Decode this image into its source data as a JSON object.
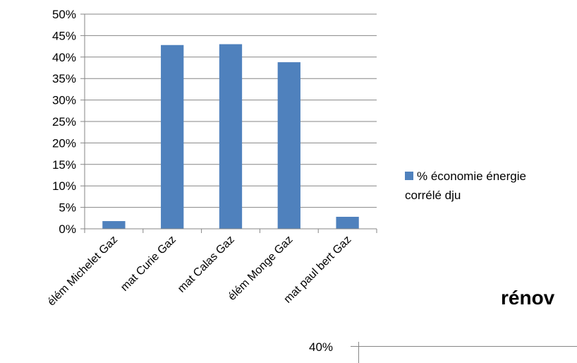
{
  "chart_data": [
    {
      "type": "bar",
      "categories": [
        "élém Michelet  Gaz",
        "mat Curie  Gaz",
        "mat Calas  Gaz",
        "élém Monge  Gaz",
        "mat paul bert  Gaz"
      ],
      "series": [
        {
          "name": "% économie énergie corrélé dju",
          "values": [
            0.018,
            0.428,
            0.43,
            0.388,
            0.028
          ]
        }
      ],
      "ylim": [
        0,
        0.5
      ],
      "yticks": [
        "0%",
        "5%",
        "10%",
        "15%",
        "20%",
        "25%",
        "30%",
        "35%",
        "40%",
        "45%",
        "50%"
      ],
      "grid": true,
      "legend": "right",
      "bar_color": "#4f81bd",
      "axis_color": "#868686"
    },
    {
      "type": "bar",
      "title": "rénov",
      "yticks": [
        "40%"
      ],
      "note": "partially visible chart at bottom-right edge"
    }
  ],
  "legend": {
    "label": "% économie énergie\ncorrélé dju"
  },
  "second_chart": {
    "title": "rénov",
    "tick": "40%"
  }
}
